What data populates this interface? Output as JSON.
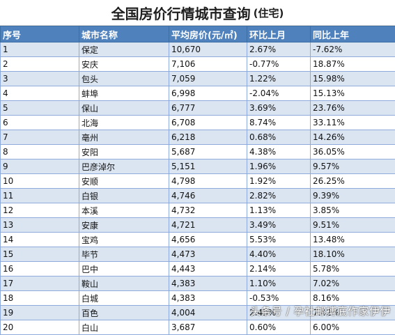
{
  "title": {
    "main": "全国房价行情城市查询",
    "sub": "(住宅)"
  },
  "columns": [
    "序号",
    "城市名称",
    "平均房价(元/㎡)",
    "环比上月",
    "同比上年"
  ],
  "rows": [
    [
      "1",
      "保定",
      "10,670",
      "2.67%",
      "-7.62%"
    ],
    [
      "2",
      "安庆",
      "7,106",
      "-0.77%",
      "18.87%"
    ],
    [
      "3",
      "包头",
      "7,059",
      "1.22%",
      "15.98%"
    ],
    [
      "4",
      "蚌埠",
      "6,998",
      "-2.04%",
      "15.13%"
    ],
    [
      "5",
      "保山",
      "6,777",
      "3.69%",
      "23.76%"
    ],
    [
      "6",
      "北海",
      "6,708",
      "8.74%",
      "33.11%"
    ],
    [
      "7",
      "亳州",
      "6,218",
      "0.68%",
      "14.26%"
    ],
    [
      "8",
      "安阳",
      "5,687",
      "4.38%",
      "36.05%"
    ],
    [
      "9",
      "巴彦淖尔",
      "5,151",
      "1.96%",
      "9.57%"
    ],
    [
      "10",
      "安顺",
      "4,798",
      "1.92%",
      "26.25%"
    ],
    [
      "11",
      "白银",
      "4,746",
      "2.82%",
      "9.39%"
    ],
    [
      "12",
      "本溪",
      "4,732",
      "1.13%",
      "3.85%"
    ],
    [
      "13",
      "安康",
      "4,721",
      "3.49%",
      "9.51%"
    ],
    [
      "14",
      "宝鸡",
      "4,656",
      "5.53%",
      "13.48%"
    ],
    [
      "15",
      "毕节",
      "4,473",
      "4.40%",
      "18.10%"
    ],
    [
      "16",
      "巴中",
      "4,443",
      "2.14%",
      "5.78%"
    ],
    [
      "17",
      "鞍山",
      "4,383",
      "1.10%",
      "7.02%"
    ],
    [
      "18",
      "白城",
      "4,383",
      "-0.53%",
      "8.16%"
    ],
    [
      "19",
      "百色",
      "4,004",
      "2.43%",
      "7.42%"
    ],
    [
      "20",
      "白山",
      "3,687",
      "0.60%",
      "6.00%"
    ]
  ],
  "watermark": "头条号 / 孕社邮搏底作家伊伊",
  "colors": {
    "header_bg": "#4f81bd",
    "band": "#dbe5f1"
  }
}
